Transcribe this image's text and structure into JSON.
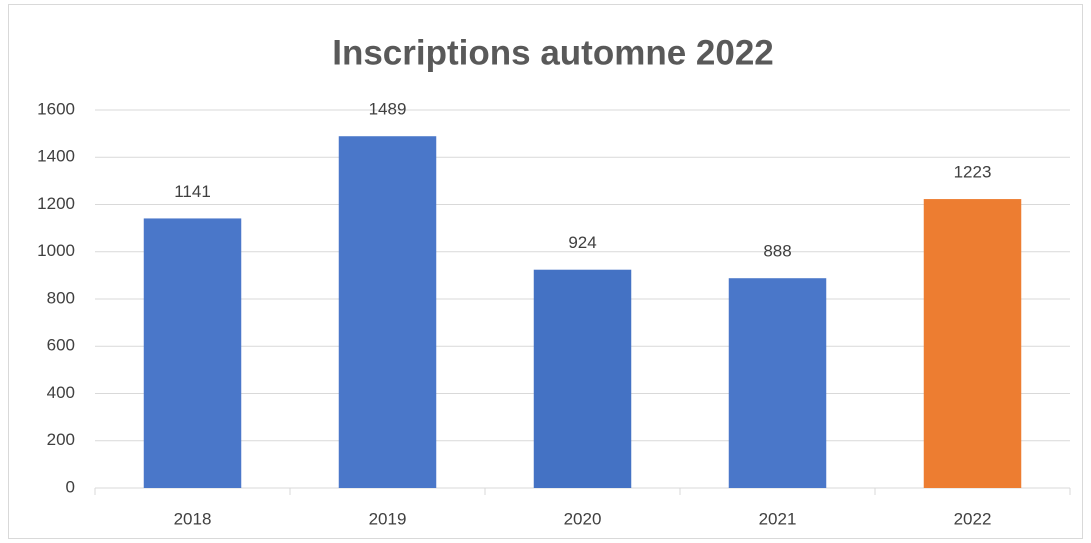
{
  "chart_data": {
    "type": "bar",
    "title": "Inscriptions automne 2022",
    "categories": [
      "2018",
      "2019",
      "2020",
      "2021",
      "2022"
    ],
    "values": [
      1141,
      1489,
      924,
      888,
      1223
    ],
    "colors": [
      "#4a77c9",
      "#4a77c9",
      "#4472c4",
      "#4a77c9",
      "#ed7d31"
    ],
    "ylim": [
      0,
      1600
    ],
    "yticks": [
      0,
      200,
      400,
      600,
      800,
      1000,
      1200,
      1400,
      1600
    ],
    "grid": true
  }
}
